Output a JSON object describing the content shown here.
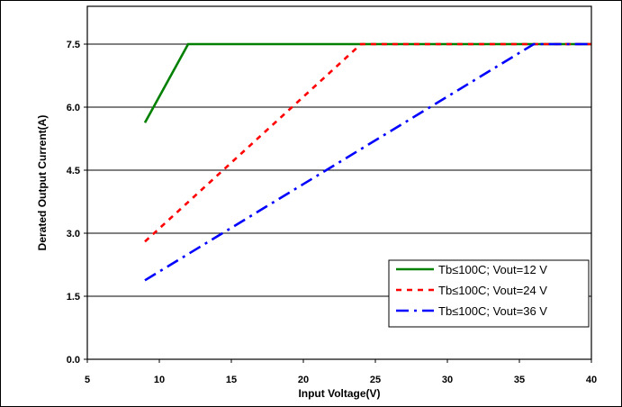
{
  "chart_data": {
    "type": "line",
    "title": "",
    "xlabel": "Input Voltage(V)",
    "ylabel": "Derated Output Current(A)",
    "xlim": [
      5,
      40
    ],
    "ylim": [
      0,
      7.5
    ],
    "x_ticks": [
      5,
      10,
      15,
      20,
      25,
      30,
      35,
      40
    ],
    "y_ticks": [
      0.0,
      1.5,
      3.0,
      4.5,
      6.0,
      7.5
    ],
    "x_tick_labels": [
      "5",
      "10",
      "15",
      "20",
      "25",
      "30",
      "35",
      "40"
    ],
    "y_tick_labels": [
      "0.0",
      "1.5",
      "3.0",
      "4.5",
      "6.0",
      "7.5"
    ],
    "grid": "horizontal",
    "legend_position": "bottom-right",
    "series": [
      {
        "name": "Tb≤100C; Vout=12 V",
        "color": "#008000",
        "dash": "solid",
        "points": [
          [
            9,
            5.63
          ],
          [
            12,
            7.5
          ],
          [
            40,
            7.5
          ]
        ]
      },
      {
        "name": "Tb≤100C; Vout=24 V",
        "color": "#ff0000",
        "dash": "dash",
        "points": [
          [
            9,
            2.8
          ],
          [
            24,
            7.5
          ],
          [
            40,
            7.5
          ]
        ]
      },
      {
        "name": "Tb≤100C; Vout=36 V",
        "color": "#0000ff",
        "dash": "dashdot",
        "points": [
          [
            9,
            1.88
          ],
          [
            36,
            7.5
          ],
          [
            40,
            7.5
          ]
        ]
      }
    ]
  }
}
